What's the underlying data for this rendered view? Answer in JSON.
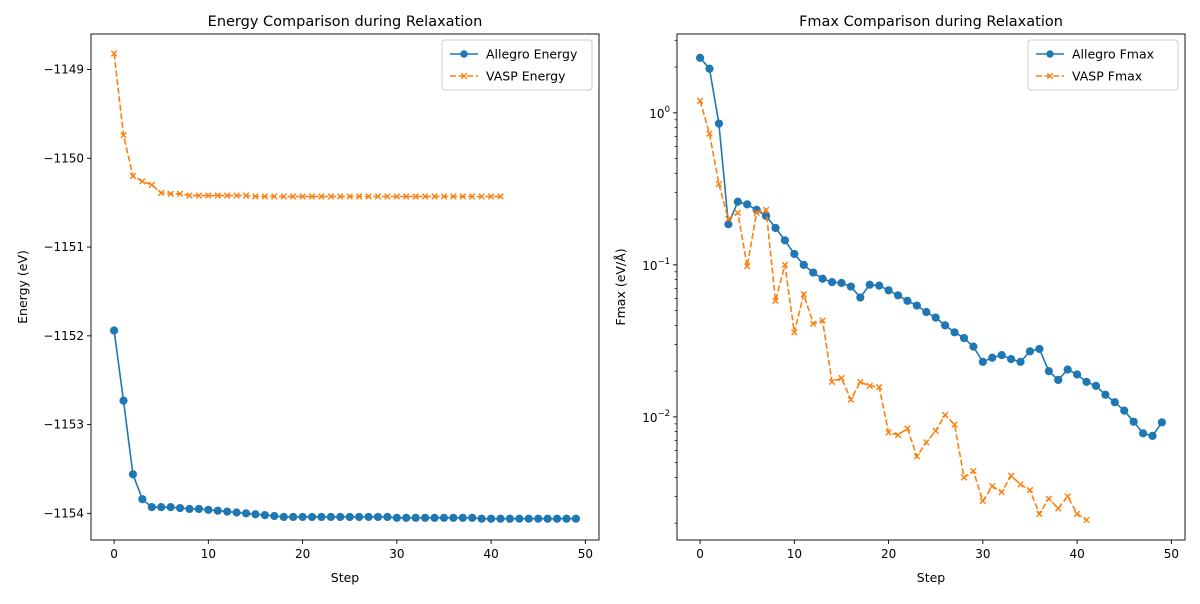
{
  "chart_data": [
    {
      "type": "line",
      "title": "Energy Comparison during Relaxation",
      "xlabel": "Step",
      "ylabel": "Energy (eV)",
      "xlim": [
        -2.45,
        51.45
      ],
      "ylim": [
        -1154.3,
        -1148.6
      ],
      "xticks": [
        0,
        10,
        20,
        30,
        40,
        50
      ],
      "yticks": [
        -1154,
        -1153,
        -1152,
        -1151,
        -1150,
        -1149
      ],
      "ytick_labels": [
        "−1154",
        "−1153",
        "−1152",
        "−1151",
        "−1150",
        "−1149"
      ],
      "yscale": "linear",
      "grid": false,
      "legend": "top-right",
      "series": [
        {
          "name": "Allegro Energy",
          "color": "#1f77b4",
          "marker": "circle",
          "linestyle": "solid",
          "x": [
            0,
            1,
            2,
            3,
            4,
            5,
            6,
            7,
            8,
            9,
            10,
            11,
            12,
            13,
            14,
            15,
            16,
            17,
            18,
            19,
            20,
            21,
            22,
            23,
            24,
            25,
            26,
            27,
            28,
            29,
            30,
            31,
            32,
            33,
            34,
            35,
            36,
            37,
            38,
            39,
            40,
            41,
            42,
            43,
            44,
            45,
            46,
            47,
            48,
            49
          ],
          "values": [
            -1151.94,
            -1152.73,
            -1153.56,
            -1153.84,
            -1153.93,
            -1153.93,
            -1153.93,
            -1153.94,
            -1153.95,
            -1153.95,
            -1153.96,
            -1153.97,
            -1153.98,
            -1153.99,
            -1154.0,
            -1154.01,
            -1154.02,
            -1154.03,
            -1154.04,
            -1154.04,
            -1154.04,
            -1154.04,
            -1154.04,
            -1154.04,
            -1154.04,
            -1154.04,
            -1154.04,
            -1154.04,
            -1154.04,
            -1154.04,
            -1154.05,
            -1154.05,
            -1154.05,
            -1154.05,
            -1154.05,
            -1154.05,
            -1154.05,
            -1154.05,
            -1154.05,
            -1154.06,
            -1154.06,
            -1154.06,
            -1154.06,
            -1154.06,
            -1154.06,
            -1154.06,
            -1154.06,
            -1154.06,
            -1154.06,
            -1154.06
          ]
        },
        {
          "name": "VASP Energy",
          "color": "#ff7f0e",
          "marker": "x",
          "linestyle": "dashed",
          "x": [
            0,
            1,
            2,
            3,
            4,
            5,
            6,
            7,
            8,
            9,
            10,
            11,
            12,
            13,
            14,
            15,
            16,
            17,
            18,
            19,
            20,
            21,
            22,
            23,
            24,
            25,
            26,
            27,
            28,
            29,
            30,
            31,
            32,
            33,
            34,
            35,
            36,
            37,
            38,
            39,
            40,
            41
          ],
          "values": [
            -1148.82,
            -1149.74,
            -1150.2,
            -1150.26,
            -1150.3,
            -1150.39,
            -1150.4,
            -1150.4,
            -1150.42,
            -1150.42,
            -1150.42,
            -1150.42,
            -1150.42,
            -1150.42,
            -1150.42,
            -1150.43,
            -1150.43,
            -1150.43,
            -1150.43,
            -1150.43,
            -1150.43,
            -1150.43,
            -1150.43,
            -1150.43,
            -1150.43,
            -1150.43,
            -1150.43,
            -1150.43,
            -1150.43,
            -1150.43,
            -1150.43,
            -1150.43,
            -1150.43,
            -1150.43,
            -1150.43,
            -1150.43,
            -1150.43,
            -1150.43,
            -1150.43,
            -1150.43,
            -1150.43,
            -1150.43
          ]
        }
      ]
    },
    {
      "type": "line",
      "title": "Fmax Comparison during Relaxation",
      "xlabel": "Step",
      "ylabel": "Fmax (eV/Å)",
      "xlim": [
        -2.45,
        51.45
      ],
      "ylim": [
        0.00155,
        3.3
      ],
      "xticks": [
        0,
        10,
        20,
        30,
        40,
        50
      ],
      "yticks_major": [
        0.01,
        0.1,
        1
      ],
      "yticks_major_labels": [
        {
          "base": "10",
          "exp": "−2"
        },
        {
          "base": "10",
          "exp": "−1"
        },
        {
          "base": "10",
          "exp": "0"
        }
      ],
      "yscale": "log",
      "grid": false,
      "legend": "top-right",
      "series": [
        {
          "name": "Allegro Fmax",
          "color": "#1f77b4",
          "marker": "circle",
          "linestyle": "solid",
          "x": [
            0,
            1,
            2,
            3,
            4,
            5,
            6,
            7,
            8,
            9,
            10,
            11,
            12,
            13,
            14,
            15,
            16,
            17,
            18,
            19,
            20,
            21,
            22,
            23,
            24,
            25,
            26,
            27,
            28,
            29,
            30,
            31,
            32,
            33,
            34,
            35,
            36,
            37,
            38,
            39,
            40,
            41,
            42,
            43,
            44,
            45,
            46,
            47,
            48,
            49
          ],
          "values": [
            2.3,
            1.95,
            0.85,
            0.185,
            0.26,
            0.25,
            0.23,
            0.21,
            0.175,
            0.145,
            0.118,
            0.1,
            0.089,
            0.081,
            0.077,
            0.076,
            0.072,
            0.061,
            0.074,
            0.073,
            0.068,
            0.063,
            0.058,
            0.054,
            0.049,
            0.045,
            0.04,
            0.036,
            0.033,
            0.029,
            0.023,
            0.0245,
            0.0255,
            0.024,
            0.023,
            0.027,
            0.028,
            0.02,
            0.0175,
            0.0205,
            0.019,
            0.017,
            0.016,
            0.014,
            0.0125,
            0.011,
            0.0093,
            0.0078,
            0.0075,
            0.0092
          ]
        },
        {
          "name": "VASP Fmax",
          "color": "#ff7f0e",
          "marker": "x",
          "linestyle": "dashed",
          "x": [
            0,
            1,
            2,
            3,
            4,
            5,
            6,
            7,
            8,
            9,
            10,
            11,
            12,
            13,
            14,
            15,
            16,
            17,
            18,
            19,
            20,
            21,
            22,
            23,
            24,
            25,
            26,
            27,
            28,
            29,
            30,
            31,
            32,
            33,
            34,
            35,
            36,
            37,
            38,
            39,
            40,
            41
          ],
          "values": [
            1.2,
            0.73,
            0.34,
            0.2,
            0.22,
            0.098,
            0.22,
            0.23,
            0.058,
            0.1,
            0.036,
            0.064,
            0.041,
            0.043,
            0.017,
            0.018,
            0.013,
            0.017,
            0.016,
            0.0157,
            0.0079,
            0.0076,
            0.0084,
            0.0055,
            0.0068,
            0.0081,
            0.0103,
            0.0089,
            0.004,
            0.0044,
            0.0028,
            0.0035,
            0.0032,
            0.0041,
            0.0036,
            0.0033,
            0.0023,
            0.0029,
            0.0025,
            0.003,
            0.0023,
            0.0021
          ]
        }
      ]
    }
  ]
}
